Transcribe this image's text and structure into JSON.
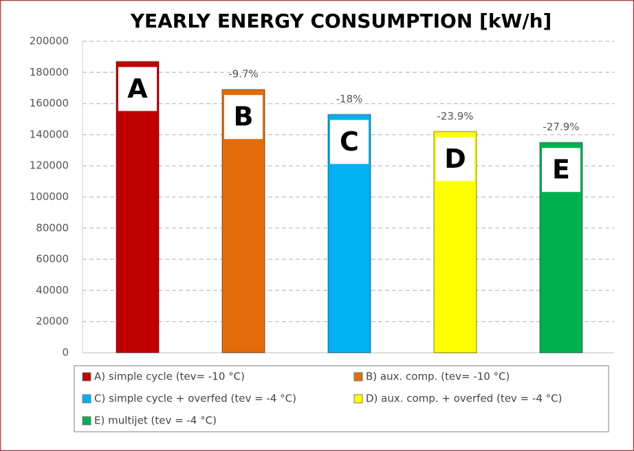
{
  "chart_data": {
    "type": "bar",
    "title": "YEARLY ENERGY CONSUMPTION [kW/h]",
    "categories": [
      "A",
      "B",
      "C",
      "D",
      "E"
    ],
    "values": [
      187000,
      169000,
      153000,
      142000,
      135000
    ],
    "colors": [
      "#c00000",
      "#e36c09",
      "#00b0f0",
      "#ffff00",
      "#00b050"
    ],
    "annotations": [
      null,
      "-9.7%",
      "-18%",
      "-23.9%",
      "-27.9%"
    ],
    "legend": [
      "A) simple cycle (tev= -10 °C)",
      "B) aux. comp. (tev= -10 °C)",
      "C) simple cycle + overfed (tev = -4 °C)",
      "D) aux. comp. + overfed (tev = -4 °C)",
      "E) multijet (tev = -4 °C)"
    ],
    "ylim": [
      0,
      200000
    ],
    "yticks": [
      0,
      20000,
      40000,
      60000,
      80000,
      100000,
      120000,
      140000,
      160000,
      180000,
      200000
    ],
    "grid": true
  }
}
